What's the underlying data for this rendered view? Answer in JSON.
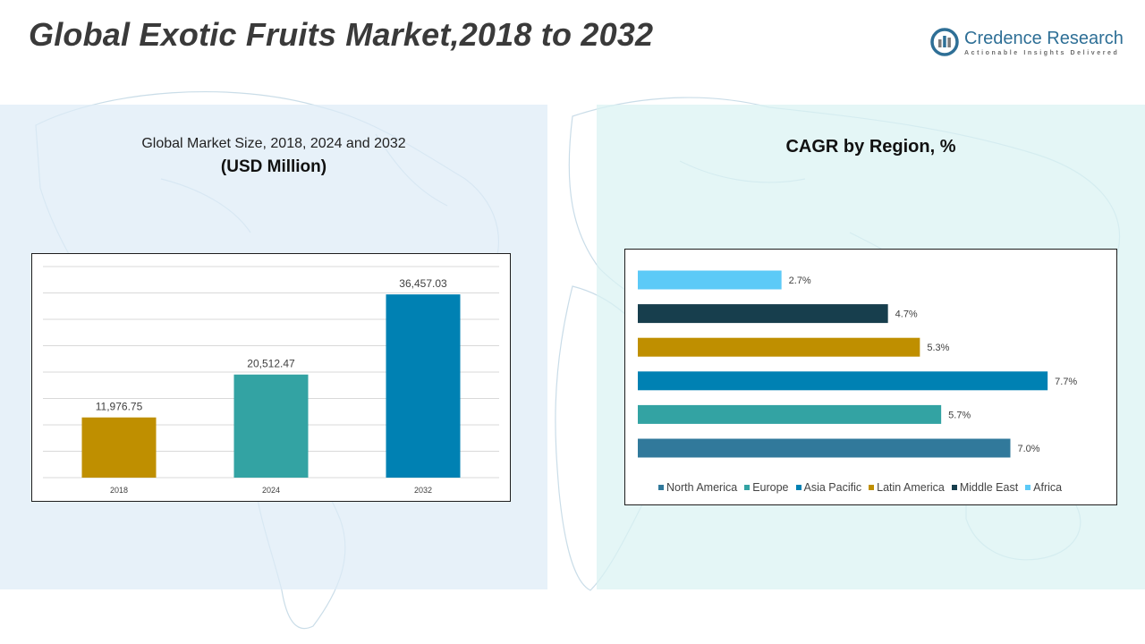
{
  "page": {
    "title": "Global Exotic Fruits Market,2018 to 2032",
    "logo_name": "Credence Research",
    "logo_tagline": "Actionable Insights Delivered"
  },
  "left_panel": {
    "title": "Global Market Size, 2018, 2024 and 2032",
    "subtitle": "(USD Million)"
  },
  "right_panel": {
    "title": "CAGR by Region, %"
  },
  "colors": {
    "title": "#3a3a3a",
    "logo": "#2e6f96",
    "gold": "#bf8f00",
    "teal": "#33a3a3",
    "blue": "#0081b3",
    "steel": "#31799b",
    "dark": "#173e4d",
    "sky": "#5ccaf7"
  },
  "chart_data": [
    {
      "type": "bar",
      "categories": [
        "2018",
        "2024",
        "2032"
      ],
      "values": [
        11976.75,
        20512.47,
        36457.03
      ],
      "value_labels": [
        "11,976.75",
        "20,512.47",
        "36,457.03"
      ],
      "bar_colors": [
        "#bf8f00",
        "#33a3a3",
        "#0081b3"
      ],
      "ylim": [
        0,
        42000
      ],
      "grid": true,
      "legend": "none"
    },
    {
      "type": "bar",
      "orientation": "horizontal",
      "categories": [
        "North America",
        "Europe",
        "Asia Pacific",
        "Latin America",
        "Middle East",
        "Africa"
      ],
      "values": [
        7.0,
        5.7,
        7.7,
        5.3,
        4.7,
        2.7
      ],
      "value_labels": [
        "7.0%",
        "5.7%",
        "7.7%",
        "5.3%",
        "4.7%",
        "2.7%"
      ],
      "bar_colors": [
        "#31799b",
        "#33a3a3",
        "#0081b3",
        "#bf8f00",
        "#173e4d",
        "#5ccaf7"
      ],
      "xlim": [
        0,
        8
      ],
      "grid": false,
      "legend": "bottom"
    }
  ]
}
